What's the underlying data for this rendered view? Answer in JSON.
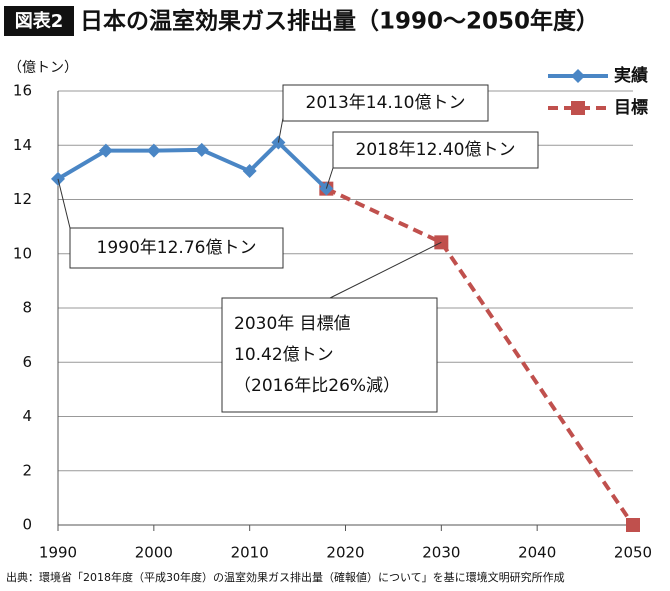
{
  "chart_data": {
    "type": "line",
    "badge": "図表2",
    "title": "日本の温室効果ガス排出量（1990〜2050年度）",
    "y_label": "（億トン）",
    "source": "出典：環境省「2018年度（平成30年度）の温室効果ガス排出量（確報値）について」を基に環境文明研究所作成",
    "series": [
      {
        "name": "実績",
        "color": "#4a86c5",
        "marker": "diamond",
        "dashed": false,
        "x": [
          1990,
          1995,
          2000,
          2005,
          2010,
          2013,
          2018
        ],
        "values": [
          12.76,
          13.8,
          13.8,
          13.83,
          13.05,
          14.1,
          12.4
        ]
      },
      {
        "name": "目標",
        "color": "#c0504d",
        "marker": "square",
        "dashed": true,
        "x": [
          2018,
          2030,
          2050
        ],
        "values": [
          12.4,
          10.42,
          0
        ]
      }
    ],
    "xlim": [
      1990,
      2050
    ],
    "xticks": [
      1990,
      2000,
      2010,
      2020,
      2030,
      2040,
      2050
    ],
    "ylim": [
      0,
      16
    ],
    "yticks": [
      0,
      2,
      4,
      6,
      8,
      10,
      12,
      14,
      16
    ],
    "grid": true,
    "legend": "upper right",
    "annotations": [
      {
        "lines": [
          "2013年14.10億トン"
        ]
      },
      {
        "lines": [
          "2018年12.40億トン"
        ]
      },
      {
        "lines": [
          "1990年12.76億トン"
        ]
      },
      {
        "lines": [
          "2030年 目標値",
          "10.42億トン",
          "（2016年比26%減）"
        ]
      }
    ]
  }
}
